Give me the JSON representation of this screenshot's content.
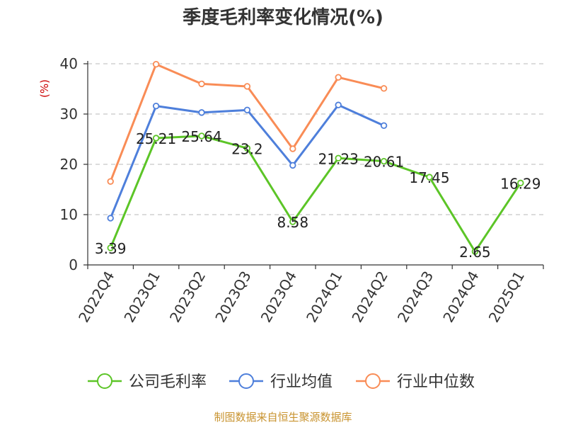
{
  "chart_data": {
    "type": "line",
    "title": "季度毛利率变化情况(%)",
    "ylabel": "(%)",
    "ylim": [
      0,
      40
    ],
    "y_ticks": [
      0,
      10,
      20,
      30,
      40
    ],
    "categories": [
      "2022Q4",
      "2023Q1",
      "2023Q2",
      "2023Q3",
      "2023Q4",
      "2024Q1",
      "2024Q2",
      "2024Q3",
      "2024Q4",
      "2025Q1"
    ],
    "grid": true,
    "legend_position": "bottom",
    "series": [
      {
        "name": "公司毛利率",
        "color": "#5cc527",
        "values": [
          3.39,
          25.21,
          25.64,
          23.2,
          8.58,
          21.23,
          20.61,
          17.45,
          2.65,
          16.29
        ],
        "labels": [
          "3.39",
          "25.21",
          "25.64",
          "23.2",
          "8.58",
          "21.23",
          "20.61",
          "17.45",
          "2.65",
          "16.29"
        ],
        "show_labels": true
      },
      {
        "name": "行业均值",
        "color": "#4e7fdb",
        "values": [
          9.3,
          31.6,
          30.3,
          30.8,
          19.8,
          31.8,
          27.7,
          null,
          null,
          null
        ],
        "show_labels": false
      },
      {
        "name": "行业中位数",
        "color": "#f98c56",
        "values": [
          16.6,
          39.9,
          36.0,
          35.5,
          23.1,
          37.3,
          35.1,
          null,
          null,
          null
        ],
        "show_labels": false
      }
    ]
  },
  "source": "制图数据来自恒生聚源数据库"
}
